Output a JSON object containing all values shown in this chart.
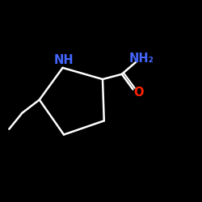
{
  "background_color": "#000000",
  "bond_color": "#ffffff",
  "N_color": "#4466ff",
  "O_color": "#ff2200",
  "NH_label": "NH",
  "NH2_label": "NH₂",
  "O_label": "O",
  "fig_width": 2.5,
  "fig_height": 2.5,
  "dpi": 100,
  "lw": 1.8,
  "fontsize": 10.5
}
